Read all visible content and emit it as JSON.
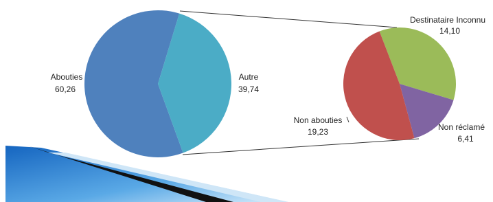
{
  "chart_data": [
    {
      "type": "pie",
      "categories": [
        "Abouties",
        "Autre"
      ],
      "values": [
        60.26,
        39.74
      ],
      "value_labels": [
        "60,26",
        "39,74"
      ],
      "colors": [
        "#4f81bd",
        "#4bacc6"
      ]
    },
    {
      "type": "pie",
      "categories": [
        "Destinataire Inconnu",
        "Non réclamé",
        "Non abouties"
      ],
      "values": [
        14.1,
        6.41,
        19.23
      ],
      "value_labels": [
        "14,10",
        "6,41",
        "19,23"
      ],
      "colors": [
        "#9bbb59",
        "#8064a2",
        "#c0504d"
      ]
    }
  ]
}
